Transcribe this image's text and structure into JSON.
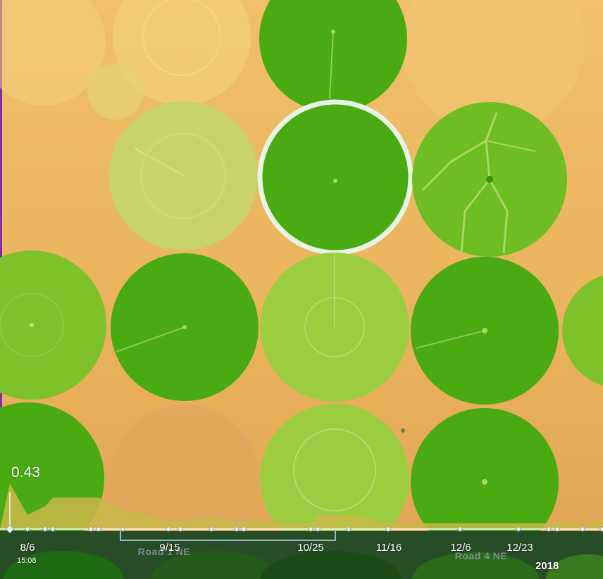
{
  "colors": {
    "background": "#e8b05a",
    "field_dark": "#4aaa12",
    "field_medium": "#7ec22a",
    "field_light": "#c8d36a",
    "selection_outline": "#e6f5e6",
    "timeline_fill": "#c9b84a",
    "timeline_line": "#ffffff",
    "border_left": "#7a2ea8"
  },
  "selection": {
    "field_id": "center-top",
    "value": "0.43"
  },
  "timeline": {
    "date_labels": [
      {
        "id": "8-6",
        "text": "8/6"
      },
      {
        "id": "9-15",
        "text": "9/15"
      },
      {
        "id": "10-25",
        "text": "10/25"
      },
      {
        "id": "11-16",
        "text": "11/16"
      },
      {
        "id": "12-6",
        "text": "12/6"
      },
      {
        "id": "12-23",
        "text": "12/23"
      }
    ],
    "time": "15:08",
    "year": "2018",
    "selected_index": 0,
    "series_values": [
      0.43,
      0.32,
      0.35,
      0.38,
      0.38,
      0.38,
      0.34,
      0.3,
      0.3,
      0.31,
      0.3,
      0.3,
      0.29,
      0.32,
      0.32,
      0.29,
      0.29,
      0.29,
      0.29,
      0.3,
      0.28,
      0.31
    ]
  },
  "map": {
    "road_labels": [
      {
        "id": "road-1",
        "text": "Road 1 NE"
      },
      {
        "id": "road-4",
        "text": "Road 4 NE"
      }
    ]
  }
}
